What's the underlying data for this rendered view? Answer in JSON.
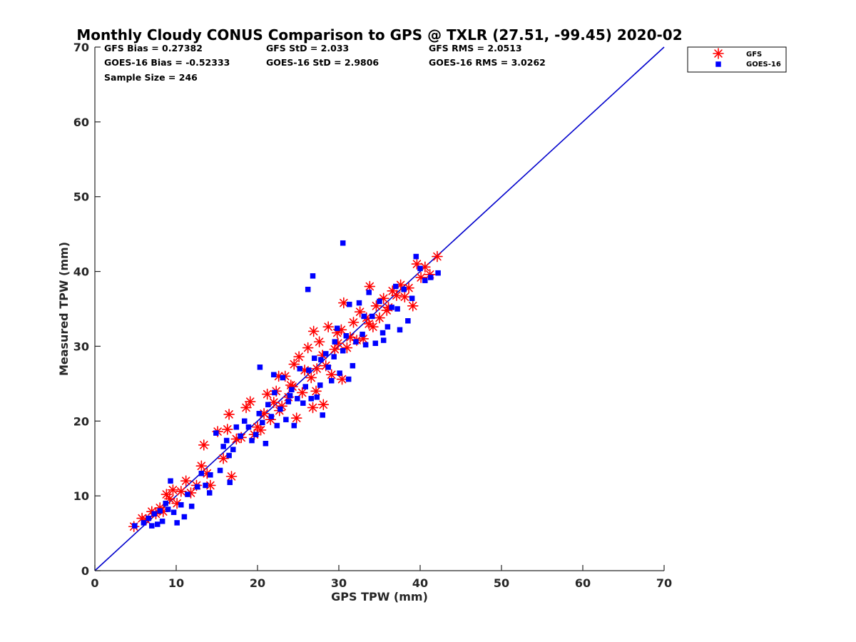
{
  "chart_data": {
    "type": "scatter",
    "title": "Monthly Cloudy CONUS Comparison to GPS @ TXLR (27.51, -99.45) 2020-02",
    "xlabel": "GPS TPW (mm)",
    "ylabel": "Measured TPW (mm)",
    "xlim": [
      0,
      70
    ],
    "ylim": [
      0,
      70
    ],
    "xticks": [
      0,
      10,
      20,
      30,
      40,
      50,
      60,
      70
    ],
    "yticks": [
      0,
      10,
      20,
      30,
      40,
      50,
      60,
      70
    ],
    "grid": false,
    "legend_position": "top-right, outside plot area",
    "stats": [
      "GFS Bias = 0.27382",
      "GOES-16 Bias = -0.52333",
      "Sample Size = 246",
      "GFS StD = 2.033",
      "GOES-16 StD = 2.9806",
      "GFS RMS = 2.0513",
      "GOES-16 RMS = 3.0262"
    ],
    "reference_line": {
      "color": "#0000CC",
      "x": [
        0,
        70
      ],
      "y": [
        0,
        70
      ]
    },
    "series": [
      {
        "name": "GFS",
        "marker": "asterisk",
        "color": "#FF0000",
        "x": [
          4.8,
          5.8,
          6.3,
          7.0,
          7.5,
          8.0,
          8.4,
          8.8,
          9.2,
          9.6,
          10.1,
          10.6,
          11.2,
          11.8,
          12.5,
          13.1,
          13.4,
          13.8,
          14.2,
          15.1,
          15.8,
          16.3,
          16.5,
          16.8,
          17.4,
          18.0,
          18.6,
          19.1,
          19.6,
          20.0,
          20.4,
          20.8,
          21.2,
          21.6,
          22.0,
          22.3,
          22.7,
          23.0,
          23.4,
          23.8,
          24.1,
          24.5,
          24.8,
          25.1,
          25.5,
          25.8,
          26.2,
          26.6,
          26.9,
          27.3,
          27.6,
          28.0,
          28.4,
          28.7,
          29.1,
          29.5,
          29.9,
          30.3,
          30.6,
          31.0,
          31.4,
          31.8,
          32.2,
          32.6,
          33.0,
          33.4,
          33.8,
          34.2,
          34.6,
          35.0,
          35.5,
          36.1,
          36.6,
          37.1,
          37.6,
          38.1,
          38.6,
          39.1,
          39.6,
          40.1,
          40.6,
          41.2,
          42.1,
          26.8,
          28.1,
          24.3,
          27.2,
          30.4,
          22.6,
          29.8,
          33.7,
          35.9
        ],
        "y": [
          5.9,
          7.0,
          6.8,
          7.9,
          7.6,
          8.4,
          7.9,
          10.2,
          9.6,
          10.8,
          9.0,
          10.6,
          12.0,
          10.4,
          11.4,
          14.0,
          16.8,
          13.0,
          11.4,
          18.6,
          15.0,
          18.9,
          20.9,
          12.6,
          17.6,
          17.8,
          21.8,
          22.6,
          18.2,
          19.2,
          18.8,
          21.0,
          23.6,
          20.2,
          22.5,
          24.0,
          21.4,
          22.0,
          26.0,
          23.2,
          24.8,
          27.6,
          20.4,
          28.6,
          23.8,
          26.8,
          29.8,
          25.8,
          32.0,
          27.0,
          30.6,
          28.8,
          27.4,
          32.6,
          26.2,
          29.6,
          30.4,
          32.2,
          35.8,
          29.8,
          31.2,
          33.2,
          30.8,
          34.6,
          31.0,
          33.8,
          38.0,
          32.6,
          35.4,
          33.8,
          36.4,
          35.2,
          37.4,
          36.8,
          38.2,
          36.6,
          37.8,
          35.4,
          41.0,
          39.2,
          40.6,
          39.6,
          42.0,
          21.8,
          22.2,
          24.6,
          24.0,
          25.6,
          26.0,
          31.8,
          33.0,
          34.8
        ]
      },
      {
        "name": "GOES-16",
        "marker": "square",
        "color": "#0000FF",
        "x": [
          4.9,
          6.0,
          6.6,
          7.0,
          7.3,
          7.7,
          8.0,
          8.3,
          8.7,
          9.0,
          9.3,
          9.7,
          10.1,
          10.6,
          11.0,
          11.4,
          11.9,
          12.6,
          13.1,
          13.6,
          14.1,
          14.9,
          15.4,
          15.8,
          16.2,
          16.6,
          17.0,
          17.4,
          17.9,
          18.4,
          18.9,
          19.3,
          19.8,
          20.2,
          20.6,
          21.0,
          21.3,
          21.7,
          22.1,
          22.4,
          22.8,
          23.1,
          23.5,
          23.8,
          24.2,
          24.5,
          24.9,
          25.2,
          25.6,
          25.9,
          26.3,
          26.6,
          27.0,
          27.3,
          27.7,
          28.0,
          28.4,
          28.7,
          29.1,
          29.4,
          29.8,
          30.1,
          30.5,
          30.9,
          31.3,
          31.7,
          32.1,
          32.5,
          32.9,
          33.3,
          33.7,
          34.1,
          34.5,
          35.0,
          35.5,
          36.0,
          36.5,
          37.0,
          37.5,
          38.0,
          38.5,
          39.0,
          39.5,
          40.0,
          40.6,
          41.3,
          42.2,
          26.2,
          26.8,
          30.5,
          20.3,
          22.0,
          24.0,
          27.8,
          29.5,
          31.2,
          33.1,
          35.4,
          37.2,
          16.5,
          14.2
        ],
        "y": [
          6.0,
          6.4,
          7.0,
          6.0,
          7.6,
          6.2,
          8.0,
          6.6,
          9.0,
          8.2,
          12.0,
          7.8,
          6.4,
          8.8,
          7.2,
          10.2,
          8.6,
          11.2,
          13.0,
          11.4,
          10.4,
          18.4,
          13.4,
          16.6,
          17.4,
          11.8,
          16.2,
          19.2,
          18.0,
          20.0,
          19.2,
          17.4,
          18.2,
          21.0,
          19.8,
          17.0,
          22.2,
          20.6,
          23.8,
          19.4,
          21.6,
          25.8,
          20.2,
          22.6,
          24.2,
          19.4,
          23.0,
          27.0,
          22.4,
          24.6,
          26.8,
          23.0,
          28.4,
          23.2,
          24.8,
          20.8,
          29.0,
          27.2,
          25.4,
          28.6,
          32.4,
          26.4,
          29.4,
          31.4,
          35.6,
          27.4,
          30.6,
          35.8,
          31.6,
          30.2,
          37.2,
          34.0,
          30.4,
          36.0,
          30.8,
          32.6,
          35.2,
          38.0,
          32.2,
          37.6,
          33.4,
          36.4,
          42.0,
          40.4,
          38.8,
          39.2,
          39.8,
          37.6,
          39.4,
          43.8,
          27.2,
          26.2,
          23.4,
          28.2,
          30.6,
          25.6,
          34.0,
          31.8,
          35.0,
          15.4,
          12.8
        ]
      }
    ]
  }
}
